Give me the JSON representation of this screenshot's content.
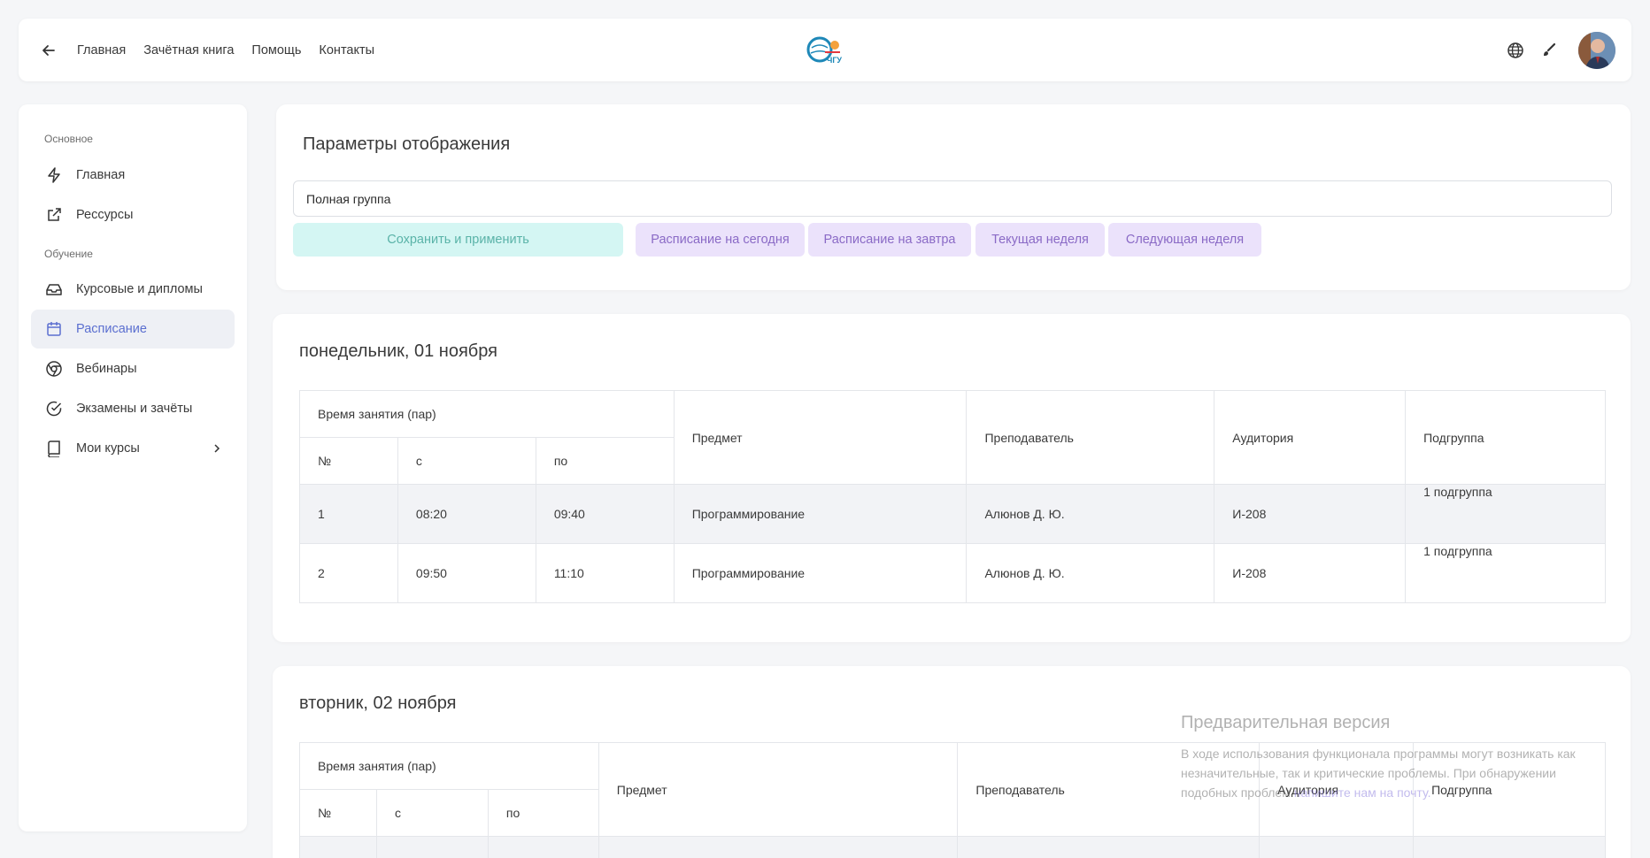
{
  "nav": {
    "links": [
      "Главная",
      "Зачётная книга",
      "Помощь",
      "Контакты"
    ],
    "logo_text": "ЧГУ"
  },
  "sidebar": {
    "section_main": "Основное",
    "section_study": "Обучение",
    "items": [
      {
        "label": "Главная",
        "icon": "lightning-icon"
      },
      {
        "label": "Рессурсы",
        "icon": "external-link-icon"
      },
      {
        "label": "Курсовые и дипломы",
        "icon": "inbox-icon"
      },
      {
        "label": "Расписание",
        "icon": "calendar-icon",
        "active": true
      },
      {
        "label": "Вебинары",
        "icon": "chrome-icon"
      },
      {
        "label": "Экзамены и зачёты",
        "icon": "check-circle-icon"
      },
      {
        "label": "Мои курсы",
        "icon": "book-icon"
      }
    ]
  },
  "params": {
    "title": "Параметры отображения",
    "group_value": "Полная группа",
    "save_label": "Сохранить и применить",
    "today_label": "Расписание на сегодня",
    "tomorrow_label": "Расписание на завтра",
    "current_week_label": "Текущая неделя",
    "next_week_label": "Следующая неделя"
  },
  "table_headers": {
    "time": "Время занятия (пар)",
    "num": "№",
    "from": "с",
    "to": "по",
    "subject": "Предмет",
    "teacher": "Преподаватель",
    "room": "Аудитория",
    "subgroup": "Подгруппа"
  },
  "days": [
    {
      "title": "понедельник, 01 ноября",
      "rows": [
        {
          "num": "1",
          "from": "08:20",
          "to": "09:40",
          "subject": "Программирование",
          "teacher": "Алюнов Д. Ю.",
          "room": "И-208",
          "subgroup": "1 подгруппа"
        },
        {
          "num": "2",
          "from": "09:50",
          "to": "11:10",
          "subject": "Программирование",
          "teacher": "Алюнов Д. Ю.",
          "room": "И-208",
          "subgroup": "1 подгруппа"
        }
      ]
    },
    {
      "title": "вторник, 02 ноября",
      "rows": []
    }
  ],
  "notice": {
    "title": "Предварительная версия",
    "text": "В ходе использования функционала программы могут возникать как незначительные, так и критические проблемы. При обнаружении подобных проблем",
    "link": "напишите нам на почту."
  },
  "colors": {
    "accent": "#5b6fd0",
    "save_bg": "#d4f6f3",
    "purple_bg": "#ebe2fb"
  }
}
